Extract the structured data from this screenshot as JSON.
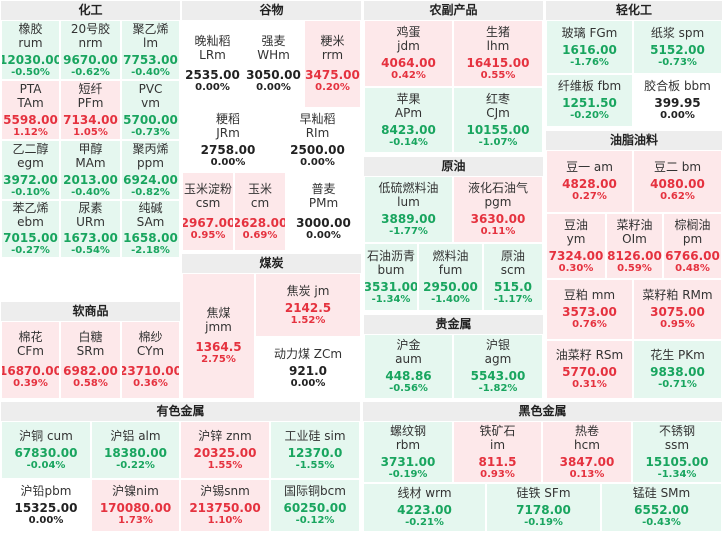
{
  "sections": [
    {
      "id": "huagong",
      "title": "化工",
      "tiles": [
        {
          "name1": "橡胶",
          "name2": "rum",
          "price": "12030.00",
          "pct": "-0.50%",
          "c": "g"
        },
        {
          "name1": "20号胶",
          "name2": "nrm",
          "price": "9670.00",
          "pct": "-0.62%",
          "c": "g"
        },
        {
          "name1": "聚乙烯",
          "name2": "lm",
          "price": "7753.00",
          "pct": "-0.40%",
          "c": "g"
        },
        {
          "name1": "PTA",
          "name2": "TAm",
          "price": "5598.00",
          "pct": "1.12%",
          "c": "r"
        },
        {
          "name1": "短纤",
          "name2": "PFm",
          "price": "7134.00",
          "pct": "1.05%",
          "c": "r"
        },
        {
          "name1": "PVC",
          "name2": "vm",
          "price": "5700.00",
          "pct": "-0.73%",
          "c": "g"
        },
        {
          "name1": "乙二醇",
          "name2": "egm",
          "price": "3972.00",
          "pct": "-0.10%",
          "c": "g"
        },
        {
          "name1": "甲醇",
          "name2": "MAm",
          "price": "2013.00",
          "pct": "-0.40%",
          "c": "g"
        },
        {
          "name1": "聚丙烯",
          "name2": "ppm",
          "price": "6924.00",
          "pct": "-0.82%",
          "c": "g"
        },
        {
          "name1": "苯乙烯",
          "name2": "ebm",
          "price": "7015.00",
          "pct": "-0.27%",
          "c": "g"
        },
        {
          "name1": "尿素",
          "name2": "URm",
          "price": "1673.00",
          "pct": "-0.54%",
          "c": "g"
        },
        {
          "name1": "纯碱",
          "name2": "SAm",
          "price": "1658.00",
          "pct": "-2.18%",
          "c": "g"
        }
      ]
    },
    {
      "id": "ruanshangpin",
      "title": "软商品",
      "tiles": [
        {
          "name1": "棉花",
          "name2": "CFm",
          "price": "16870.00",
          "pct": "0.39%",
          "c": "r"
        },
        {
          "name1": "白糖",
          "name2": "SRm",
          "price": "6982.00",
          "pct": "0.58%",
          "c": "r"
        },
        {
          "name1": "棉纱",
          "name2": "CYm",
          "price": "23710.00",
          "pct": "0.36%",
          "c": "r"
        }
      ]
    },
    {
      "id": "guwu",
      "title": "谷物",
      "tiles": [
        {
          "name1": "晚籼稻",
          "name2": "LRm",
          "price": "2535.00",
          "pct": "0.00%",
          "c": "w"
        },
        {
          "name1": "强麦",
          "name2": "WHm",
          "price": "3050.00",
          "pct": "0.00%",
          "c": "w"
        },
        {
          "name1": "粳米",
          "name2": "rrm",
          "price": "3475.00",
          "pct": "0.20%",
          "c": "r"
        },
        {
          "name1": "粳稻",
          "name2": "JRm",
          "price": "2758.00",
          "pct": "0.00%",
          "c": "w"
        },
        {
          "name1": "早籼稻",
          "name2": "RIm",
          "price": "2500.00",
          "pct": "0.00%",
          "c": "w"
        },
        {
          "name1": "玉米淀粉",
          "name2": "csm",
          "price": "2967.00",
          "pct": "0.95%",
          "c": "r"
        },
        {
          "name1": "玉米",
          "name2": "cm",
          "price": "2628.00",
          "pct": "0.69%",
          "c": "r"
        },
        {
          "name1": "普麦",
          "name2": "PMm",
          "price": "3000.00",
          "pct": "0.00%",
          "c": "w"
        }
      ]
    },
    {
      "id": "meitan",
      "title": "煤炭",
      "tiles": [
        {
          "name1": "焦煤",
          "name2": "jmm",
          "price": "1364.5",
          "pct": "2.75%",
          "c": "r"
        },
        {
          "name1": "焦炭 jm",
          "name2": "",
          "price": "2142.5",
          "pct": "1.52%",
          "c": "r"
        },
        {
          "name1": "动力煤 ZCm",
          "name2": "",
          "price": "921.0",
          "pct": "0.00%",
          "c": "w"
        }
      ]
    },
    {
      "id": "nongchanpin",
      "title": "农副产品",
      "tiles": [
        {
          "name1": "鸡蛋",
          "name2": "jdm",
          "price": "4064.00",
          "pct": "0.42%",
          "c": "r"
        },
        {
          "name1": "生猪",
          "name2": "lhm",
          "price": "16415.00",
          "pct": "0.55%",
          "c": "r"
        },
        {
          "name1": "苹果",
          "name2": "APm",
          "price": "8423.00",
          "pct": "-0.14%",
          "c": "g"
        },
        {
          "name1": "红枣",
          "name2": "CJm",
          "price": "10155.00",
          "pct": "-1.07%",
          "c": "g"
        }
      ]
    },
    {
      "id": "yuanyou",
      "title": "原油",
      "tiles": [
        {
          "name1": "低硫燃料油",
          "name2": "lum",
          "price": "3889.00",
          "pct": "-1.77%",
          "c": "g"
        },
        {
          "name1": "液化石油气",
          "name2": "pgm",
          "price": "3630.00",
          "pct": "0.11%",
          "c": "r"
        },
        {
          "name1": "石油沥青",
          "name2": "bum",
          "price": "3531.00",
          "pct": "-1.34%",
          "c": "g"
        },
        {
          "name1": "燃料油",
          "name2": "fum",
          "price": "2950.00",
          "pct": "-1.40%",
          "c": "g"
        },
        {
          "name1": "原油",
          "name2": "scm",
          "price": "515.0",
          "pct": "-1.17%",
          "c": "g"
        }
      ]
    },
    {
      "id": "guijinshu",
      "title": "贵金属",
      "tiles": [
        {
          "name1": "沪金",
          "name2": "aum",
          "price": "448.86",
          "pct": "-0.56%",
          "c": "g"
        },
        {
          "name1": "沪银",
          "name2": "agm",
          "price": "5543.00",
          "pct": "-1.82%",
          "c": "g"
        }
      ]
    },
    {
      "id": "qinggong",
      "title": "轻化工",
      "tiles": [
        {
          "name1": "玻璃 FGm",
          "name2": "",
          "price": "1616.00",
          "pct": "-1.76%",
          "c": "g"
        },
        {
          "name1": "纸浆 spm",
          "name2": "",
          "price": "5152.00",
          "pct": "-0.73%",
          "c": "g"
        },
        {
          "name1": "纤维板 fbm",
          "name2": "",
          "price": "1251.50",
          "pct": "-0.20%",
          "c": "g"
        },
        {
          "name1": "胶合板 bbm",
          "name2": "",
          "price": "399.95",
          "pct": "0.00%",
          "c": "w"
        }
      ]
    },
    {
      "id": "youzhi",
      "title": "油脂油料",
      "tiles": [
        {
          "name1": "豆一 am",
          "name2": "",
          "price": "4828.00",
          "pct": "0.27%",
          "c": "r"
        },
        {
          "name1": "豆二 bm",
          "name2": "",
          "price": "4080.00",
          "pct": "0.62%",
          "c": "r"
        },
        {
          "name1": "豆油",
          "name2": "ym",
          "price": "7324.00",
          "pct": "0.30%",
          "c": "r"
        },
        {
          "name1": "菜籽油",
          "name2": "OIm",
          "price": "8126.00",
          "pct": "0.59%",
          "c": "r"
        },
        {
          "name1": "棕榈油",
          "name2": "pm",
          "price": "6766.00",
          "pct": "0.48%",
          "c": "r"
        },
        {
          "name1": "豆粕 mm",
          "name2": "",
          "price": "3573.00",
          "pct": "0.76%",
          "c": "r"
        },
        {
          "name1": "菜籽粕 RMm",
          "name2": "",
          "price": "3075.00",
          "pct": "0.95%",
          "c": "r"
        },
        {
          "name1": "油菜籽 RSm",
          "name2": "",
          "price": "5770.00",
          "pct": "0.31%",
          "c": "r"
        },
        {
          "name1": "花生 PKm",
          "name2": "",
          "price": "9838.00",
          "pct": "-0.71%",
          "c": "g"
        }
      ]
    },
    {
      "id": "youse",
      "title": "有色金属",
      "tiles": [
        {
          "name1": "沪铜 cum",
          "name2": "",
          "price": "67830.00",
          "pct": "-0.04%",
          "c": "g"
        },
        {
          "name1": "沪铝 alm",
          "name2": "",
          "price": "18380.00",
          "pct": "-0.22%",
          "c": "g"
        },
        {
          "name1": "沪锌 znm",
          "name2": "",
          "price": "20325.00",
          "pct": "1.55%",
          "c": "r"
        },
        {
          "name1": "工业硅 sim",
          "name2": "",
          "price": "12370.0",
          "pct": "-1.55%",
          "c": "g"
        },
        {
          "name1": "沪铅pbm",
          "name2": "",
          "price": "15325.00",
          "pct": "0.00%",
          "c": "w"
        },
        {
          "name1": "沪镍nim",
          "name2": "",
          "price": "170080.00",
          "pct": "1.73%",
          "c": "r"
        },
        {
          "name1": "沪锡snm",
          "name2": "",
          "price": "213750.00",
          "pct": "1.10%",
          "c": "r"
        },
        {
          "name1": "国际铜bcm",
          "name2": "",
          "price": "60250.00",
          "pct": "-0.12%",
          "c": "g"
        }
      ]
    },
    {
      "id": "heise",
      "title": "黑色金属",
      "tiles": [
        {
          "name1": "螺纹钢",
          "name2": "rbm",
          "price": "3731.00",
          "pct": "-0.19%",
          "c": "g"
        },
        {
          "name1": "铁矿石",
          "name2": "im",
          "price": "811.5",
          "pct": "0.93%",
          "c": "r"
        },
        {
          "name1": "热卷",
          "name2": "hcm",
          "price": "3847.00",
          "pct": "0.13%",
          "c": "r"
        },
        {
          "name1": "不锈钢",
          "name2": "ssm",
          "price": "15105.00",
          "pct": "-1.34%",
          "c": "g"
        },
        {
          "name1": "线材 wrm",
          "name2": "",
          "price": "4223.00",
          "pct": "-0.21%",
          "c": "g"
        },
        {
          "name1": "硅铁 SFm",
          "name2": "",
          "price": "7178.00",
          "pct": "-0.19%",
          "c": "g"
        },
        {
          "name1": "锰硅 SMm",
          "name2": "",
          "price": "6552.00",
          "pct": "-0.43%",
          "c": "g"
        }
      ]
    }
  ],
  "colors": {
    "up": "#e5323f",
    "down": "#19a55f",
    "flat": "#222222",
    "up_bg": "#fde8ea",
    "down_bg": "#e5f7ef",
    "header_bg": "#ededed"
  }
}
